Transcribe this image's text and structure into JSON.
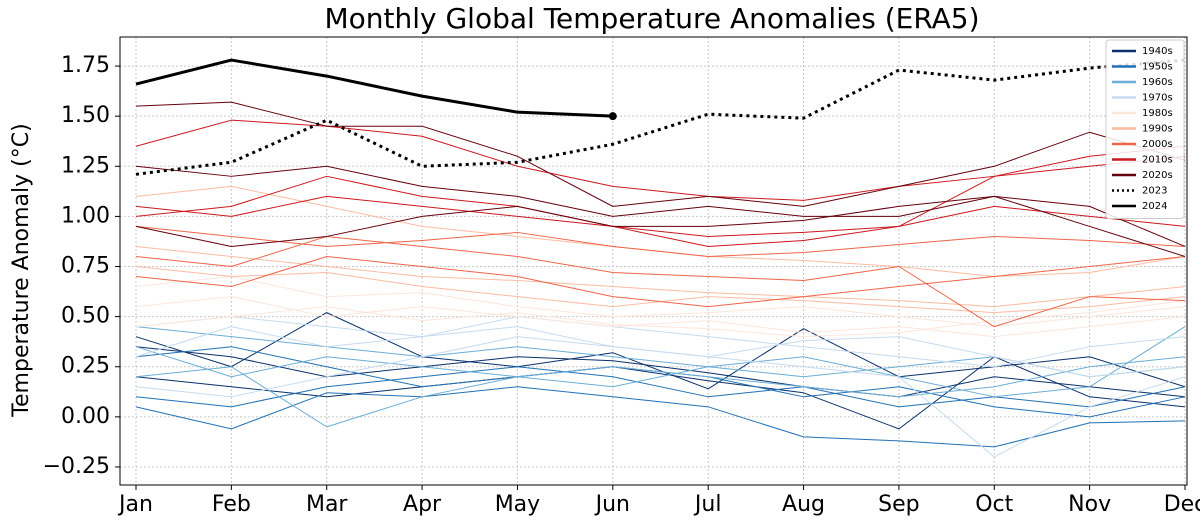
{
  "chart_data": {
    "type": "line",
    "title": "Monthly Global Temperature Anomalies (ERA5)",
    "ylabel": "Temperature Anomaly (°C)",
    "categories": [
      "Jan",
      "Feb",
      "Mar",
      "Apr",
      "May",
      "Jun",
      "Jul",
      "Aug",
      "Sep",
      "Oct",
      "Nov",
      "Dec"
    ],
    "ylim": [
      -0.34,
      1.895
    ],
    "yticks": [
      {
        "value": -0.25,
        "label": "−0.25"
      },
      {
        "value": 0,
        "label": "0.00"
      },
      0.25,
      {
        "value": 0.5,
        "label": "0.50"
      },
      0.75,
      {
        "value": 1,
        "label": "1.00"
      },
      1.25,
      {
        "value": 1.5,
        "label": "1.50"
      },
      1.75
    ],
    "grid": true,
    "legend": "upper right",
    "series": [
      {
        "name": "1940s",
        "color": "#08306b",
        "values": [
          [
            0.35,
            0.3,
            0.2,
            0.25,
            0.3,
            0.28,
            0.22,
            0.15,
            0.1,
            0.2,
            0.15,
            0.1
          ],
          [
            0.4,
            0.25,
            0.52,
            0.3,
            0.25,
            0.32,
            0.14,
            0.44,
            0.2,
            0.25,
            0.3,
            0.15
          ],
          [
            0.2,
            0.15,
            0.1,
            0.15,
            0.2,
            0.25,
            0.18,
            0.12,
            -0.06,
            0.3,
            0.1,
            0.05
          ]
        ]
      },
      {
        "name": "1950s",
        "color": "#2171b5",
        "values": [
          [
            0.1,
            0.05,
            0.15,
            0.2,
            0.25,
            0.2,
            0.1,
            0.15,
            0.05,
            0.1,
            0.05,
            0.15
          ],
          [
            0.3,
            0.35,
            0.25,
            0.15,
            0.2,
            0.25,
            0.2,
            0.1,
            0.15,
            0.05,
            0.0,
            0.1
          ],
          [
            0.05,
            -0.06,
            0.12,
            0.1,
            0.15,
            0.1,
            0.05,
            -0.1,
            -0.12,
            -0.15,
            -0.03,
            -0.02
          ]
        ]
      },
      {
        "name": "1960s",
        "color": "#6baed6",
        "values": [
          [
            0.45,
            0.4,
            0.35,
            0.3,
            0.35,
            0.3,
            0.25,
            0.2,
            0.25,
            0.3,
            0.2,
            0.25
          ],
          [
            0.2,
            0.25,
            -0.05,
            0.1,
            0.2,
            0.25,
            0.2,
            0.15,
            0.1,
            0.15,
            0.25,
            0.3
          ],
          [
            0.35,
            0.2,
            0.3,
            0.25,
            0.2,
            0.15,
            0.25,
            0.3,
            0.2,
            0.1,
            0.15,
            0.45
          ]
        ]
      },
      {
        "name": "1970s",
        "color": "#c6dbef",
        "values": [
          [
            0.3,
            0.45,
            0.35,
            0.4,
            0.45,
            0.35,
            0.3,
            0.25,
            0.2,
            -0.2,
            0.05,
            0.2
          ],
          [
            0.15,
            0.1,
            0.2,
            0.3,
            0.4,
            0.35,
            0.3,
            0.38,
            0.4,
            0.3,
            0.2,
            0.25
          ],
          [
            0.45,
            0.5,
            0.45,
            0.4,
            0.5,
            0.45,
            0.4,
            0.35,
            0.3,
            0.25,
            0.35,
            0.4
          ]
        ]
      },
      {
        "name": "1980s",
        "color": "#fde6dc",
        "values": [
          [
            0.55,
            0.6,
            0.5,
            0.55,
            0.5,
            0.45,
            0.48,
            0.42,
            0.45,
            0.4,
            0.45,
            0.5
          ],
          [
            0.65,
            0.7,
            0.6,
            0.62,
            0.55,
            0.5,
            0.52,
            0.55,
            0.5,
            0.45,
            0.5,
            0.55
          ],
          [
            0.45,
            0.5,
            0.55,
            0.48,
            0.52,
            0.46,
            0.44,
            0.4,
            0.42,
            0.48,
            0.52,
            0.58
          ]
        ]
      },
      {
        "name": "1990s",
        "color": "#fcbba1",
        "values": [
          [
            0.75,
            0.7,
            0.72,
            0.65,
            0.6,
            0.55,
            0.6,
            0.58,
            0.55,
            0.52,
            0.55,
            0.6
          ],
          [
            0.85,
            0.8,
            0.75,
            0.7,
            0.68,
            0.65,
            0.62,
            0.6,
            0.58,
            0.55,
            0.6,
            0.65
          ],
          [
            1.1,
            1.15,
            1.05,
            0.95,
            0.9,
            0.85,
            0.8,
            0.78,
            0.75,
            0.7,
            0.72,
            0.8
          ]
        ]
      },
      {
        "name": "2000s",
        "color": "#ef6548",
        "values": [
          [
            0.7,
            0.65,
            0.8,
            0.75,
            0.7,
            0.6,
            0.55,
            0.6,
            0.65,
            0.7,
            0.75,
            0.8
          ],
          [
            0.95,
            0.9,
            0.85,
            0.88,
            0.92,
            0.85,
            0.8,
            0.82,
            0.86,
            0.9,
            0.88,
            0.85
          ],
          [
            0.8,
            0.75,
            0.9,
            0.85,
            0.8,
            0.72,
            0.7,
            0.68,
            0.75,
            0.45,
            0.6,
            0.58
          ]
        ]
      },
      {
        "name": "2010s",
        "color": "#cb181d",
        "values": [
          [
            1.05,
            1.0,
            1.1,
            1.05,
            1.0,
            0.95,
            0.9,
            0.92,
            0.95,
            1.05,
            1.0,
            0.95
          ],
          [
            1.35,
            1.48,
            1.45,
            1.4,
            1.25,
            1.15,
            1.1,
            1.08,
            1.15,
            1.2,
            1.25,
            1.3
          ],
          [
            1.0,
            1.05,
            1.2,
            1.1,
            1.05,
            0.95,
            0.85,
            0.88,
            0.95,
            1.2,
            1.3,
            1.35
          ]
        ]
      },
      {
        "name": "2020s",
        "color": "#67000d",
        "values": [
          [
            1.55,
            1.57,
            1.45,
            1.45,
            1.3,
            1.05,
            1.1,
            1.05,
            1.15,
            1.25,
            1.42,
            1.28
          ],
          [
            1.25,
            1.2,
            1.25,
            1.15,
            1.1,
            1.0,
            1.05,
            1.0,
            1.0,
            1.1,
            1.05,
            0.85
          ],
          [
            0.95,
            0.85,
            0.9,
            1.0,
            1.05,
            0.95,
            0.95,
            0.98,
            1.05,
            1.1,
            0.95,
            0.8
          ]
        ]
      },
      {
        "name": "2023",
        "color": "#000000",
        "style": "dotted",
        "values": [
          1.21,
          1.27,
          1.48,
          1.25,
          1.27,
          1.36,
          1.51,
          1.49,
          1.73,
          1.68,
          1.74,
          1.78
        ]
      },
      {
        "name": "2024",
        "color": "#000000",
        "style": "solid",
        "values": [
          1.66,
          1.78,
          1.7,
          1.6,
          1.52,
          1.5,
          null,
          null,
          null,
          null,
          null,
          null
        ]
      }
    ]
  }
}
